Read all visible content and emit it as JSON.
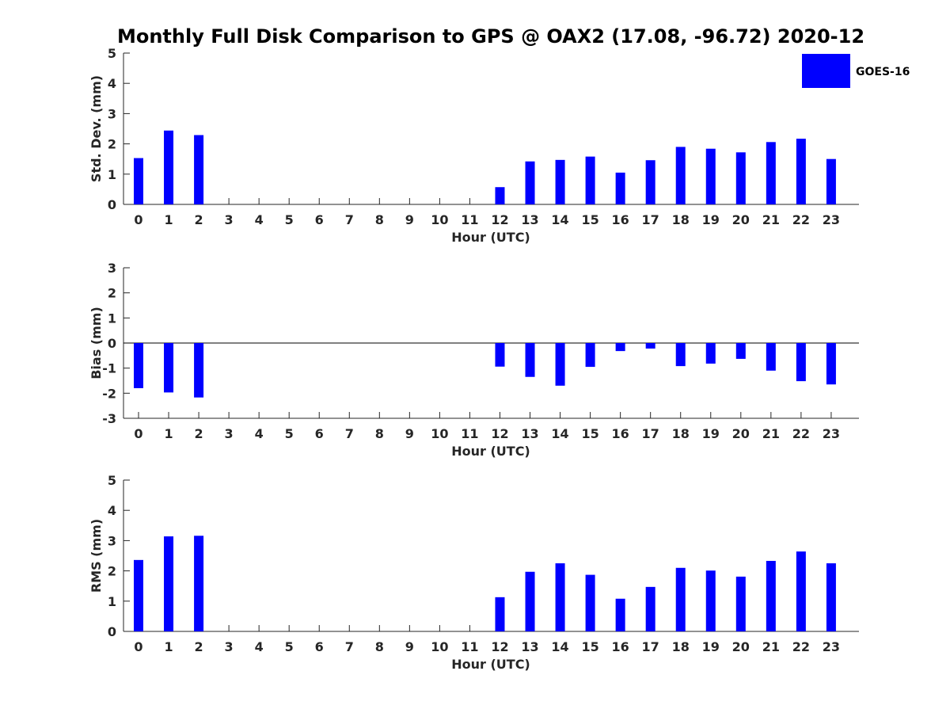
{
  "title": "Monthly Full Disk Comparison to GPS @ OAX2 (17.08, -96.72) 2020-12",
  "legend": {
    "placement": "top-right",
    "label": "GOES-16",
    "color": "#0000ff"
  },
  "chart_data": [
    {
      "type": "bar",
      "xlabel": "Hour (UTC)",
      "ylabel": "Std. Dev. (mm)",
      "ylim": [
        0,
        5
      ],
      "yticks": [
        0,
        1,
        2,
        3,
        4,
        5
      ],
      "categories": [
        "0",
        "1",
        "2",
        "3",
        "4",
        "5",
        "6",
        "7",
        "8",
        "9",
        "10",
        "11",
        "12",
        "13",
        "14",
        "15",
        "16",
        "17",
        "18",
        "19",
        "20",
        "21",
        "22",
        "23"
      ],
      "series": [
        {
          "name": "GOES-16",
          "color": "#0000ff",
          "values": [
            1.53,
            2.44,
            2.29,
            null,
            null,
            null,
            null,
            null,
            null,
            null,
            null,
            null,
            0.57,
            1.42,
            1.47,
            1.58,
            1.05,
            1.46,
            1.9,
            1.84,
            1.72,
            2.06,
            2.17,
            1.5
          ]
        }
      ]
    },
    {
      "type": "bar",
      "xlabel": "Hour (UTC)",
      "ylabel": "Bias (mm)",
      "ylim": [
        -3,
        3
      ],
      "yticks": [
        -3,
        -2,
        -1,
        0,
        1,
        2,
        3
      ],
      "zero_line": true,
      "categories": [
        "0",
        "1",
        "2",
        "3",
        "4",
        "5",
        "6",
        "7",
        "8",
        "9",
        "10",
        "11",
        "12",
        "13",
        "14",
        "15",
        "16",
        "17",
        "18",
        "19",
        "20",
        "21",
        "22",
        "23"
      ],
      "series": [
        {
          "name": "GOES-16",
          "color": "#0000ff",
          "values": [
            -1.8,
            -1.97,
            -2.17,
            null,
            null,
            null,
            null,
            null,
            null,
            null,
            null,
            null,
            -0.94,
            -1.35,
            -1.7,
            -0.95,
            -0.32,
            -0.22,
            -0.92,
            -0.82,
            -0.63,
            -1.1,
            -1.52,
            -1.65
          ]
        }
      ]
    },
    {
      "type": "bar",
      "xlabel": "Hour (UTC)",
      "ylabel": "RMS (mm)",
      "ylim": [
        0,
        5
      ],
      "yticks": [
        0,
        1,
        2,
        3,
        4,
        5
      ],
      "categories": [
        "0",
        "1",
        "2",
        "3",
        "4",
        "5",
        "6",
        "7",
        "8",
        "9",
        "10",
        "11",
        "12",
        "13",
        "14",
        "15",
        "16",
        "17",
        "18",
        "19",
        "20",
        "21",
        "22",
        "23"
      ],
      "series": [
        {
          "name": "GOES-16",
          "color": "#0000ff",
          "values": [
            2.36,
            3.14,
            3.16,
            null,
            null,
            null,
            null,
            null,
            null,
            null,
            null,
            null,
            1.13,
            1.97,
            2.25,
            1.87,
            1.08,
            1.47,
            2.1,
            2.01,
            1.81,
            2.33,
            2.64,
            2.25
          ]
        }
      ]
    }
  ]
}
